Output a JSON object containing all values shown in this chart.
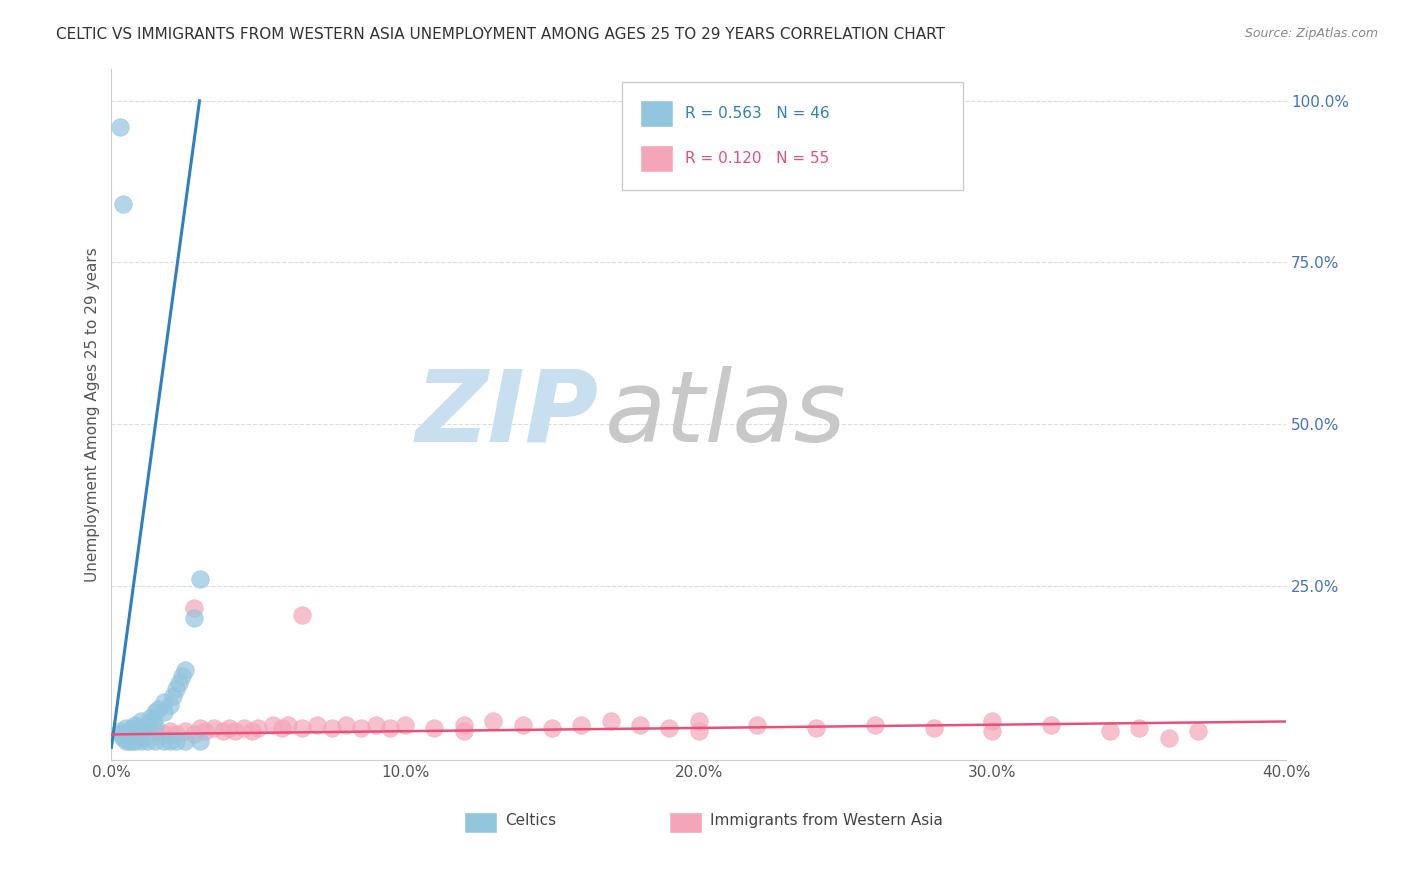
{
  "title": "CELTIC VS IMMIGRANTS FROM WESTERN ASIA UNEMPLOYMENT AMONG AGES 25 TO 29 YEARS CORRELATION CHART",
  "source": "Source: ZipAtlas.com",
  "ylabel": "Unemployment Among Ages 25 to 29 years",
  "xlim": [
    0.0,
    0.4
  ],
  "ylim": [
    -0.02,
    1.05
  ],
  "xtick_labels": [
    "0.0%",
    "10.0%",
    "20.0%",
    "30.0%",
    "40.0%"
  ],
  "xtick_vals": [
    0.0,
    0.1,
    0.2,
    0.3,
    0.4
  ],
  "ytick_labels": [
    "100.0%",
    "75.0%",
    "50.0%",
    "25.0%"
  ],
  "ytick_vals": [
    1.0,
    0.75,
    0.5,
    0.25
  ],
  "legend_labels": [
    "Celtics",
    "Immigrants from Western Asia"
  ],
  "celtics_R": 0.563,
  "celtics_N": 46,
  "immigrants_R": 0.12,
  "immigrants_N": 55,
  "celtics_color": "#92c5de",
  "immigrants_color": "#f4a6b8",
  "celtics_line_color": "#3080c0",
  "immigrants_line_color": "#e8507a",
  "background_color": "#ffffff",
  "watermark_zip_color": "#c8dff0",
  "watermark_atlas_color": "#c8c8c8",
  "grid_color": "#dddddd",
  "title_color": "#333333",
  "source_color": "#888888",
  "tick_color": "#555555",
  "ytick_color": "#4472c4",
  "celtics_x": [
    0.003,
    0.003,
    0.004,
    0.005,
    0.005,
    0.006,
    0.006,
    0.007,
    0.007,
    0.008,
    0.008,
    0.008,
    0.009,
    0.01,
    0.01,
    0.011,
    0.012,
    0.013,
    0.014,
    0.015,
    0.015,
    0.016,
    0.018,
    0.018,
    0.02,
    0.021,
    0.022,
    0.023,
    0.024,
    0.025,
    0.003,
    0.004,
    0.005,
    0.006,
    0.007,
    0.008,
    0.01,
    0.012,
    0.015,
    0.018,
    0.02,
    0.022,
    0.025,
    0.03,
    0.03,
    0.028
  ],
  "celtics_y": [
    0.02,
    0.025,
    0.015,
    0.02,
    0.03,
    0.015,
    0.025,
    0.02,
    0.03,
    0.02,
    0.025,
    0.035,
    0.03,
    0.025,
    0.04,
    0.03,
    0.035,
    0.045,
    0.04,
    0.035,
    0.055,
    0.06,
    0.055,
    0.07,
    0.065,
    0.08,
    0.09,
    0.1,
    0.11,
    0.12,
    0.96,
    0.84,
    0.01,
    0.01,
    0.01,
    0.01,
    0.01,
    0.01,
    0.01,
    0.01,
    0.01,
    0.01,
    0.01,
    0.01,
    0.26,
    0.2
  ],
  "immigrants_x": [
    0.005,
    0.008,
    0.01,
    0.012,
    0.015,
    0.018,
    0.02,
    0.022,
    0.025,
    0.028,
    0.03,
    0.032,
    0.035,
    0.038,
    0.04,
    0.042,
    0.045,
    0.048,
    0.05,
    0.055,
    0.058,
    0.06,
    0.065,
    0.07,
    0.075,
    0.08,
    0.085,
    0.09,
    0.095,
    0.1,
    0.11,
    0.12,
    0.13,
    0.14,
    0.15,
    0.16,
    0.17,
    0.18,
    0.19,
    0.2,
    0.22,
    0.24,
    0.26,
    0.28,
    0.3,
    0.32,
    0.34,
    0.35,
    0.36,
    0.37,
    0.028,
    0.065,
    0.12,
    0.2,
    0.3
  ],
  "immigrants_y": [
    0.015,
    0.02,
    0.015,
    0.02,
    0.025,
    0.02,
    0.025,
    0.02,
    0.025,
    0.02,
    0.03,
    0.025,
    0.03,
    0.025,
    0.03,
    0.025,
    0.03,
    0.025,
    0.03,
    0.035,
    0.03,
    0.035,
    0.03,
    0.035,
    0.03,
    0.035,
    0.03,
    0.035,
    0.03,
    0.035,
    0.03,
    0.035,
    0.04,
    0.035,
    0.03,
    0.035,
    0.04,
    0.035,
    0.03,
    0.04,
    0.035,
    0.03,
    0.035,
    0.03,
    0.04,
    0.035,
    0.025,
    0.03,
    0.015,
    0.025,
    0.215,
    0.205,
    0.025,
    0.025,
    0.025
  ],
  "celtics_trendline_x": [
    0.0,
    0.03
  ],
  "celtics_trendline_y": [
    0.0,
    1.0
  ],
  "immigrants_trendline_x": [
    0.0,
    0.4
  ],
  "immigrants_trendline_y": [
    0.02,
    0.04
  ]
}
